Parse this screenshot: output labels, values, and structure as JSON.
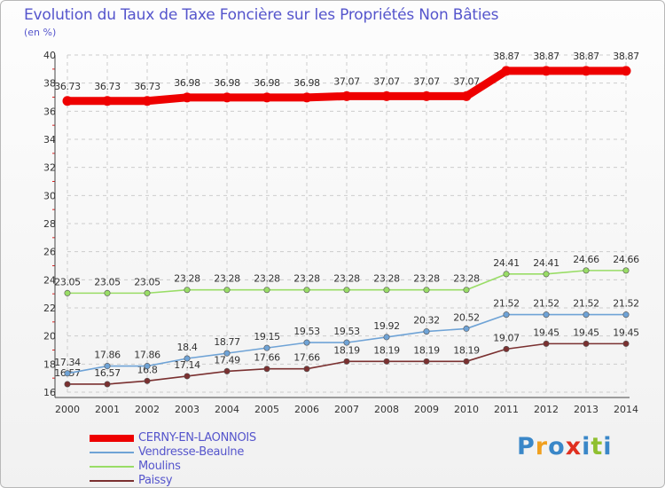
{
  "chart_data": {
    "type": "line",
    "title": "Evolution du Taux de Taxe Foncière sur les Propriétés Non Bâties",
    "ylabel": "(en %)",
    "xlabel": "",
    "ylim": [
      16,
      40
    ],
    "yticks": [
      16,
      18,
      20,
      22,
      24,
      26,
      28,
      30,
      32,
      34,
      36,
      38,
      40
    ],
    "categories": [
      "2000",
      "2001",
      "2002",
      "2003",
      "2004",
      "2005",
      "2006",
      "2007",
      "2008",
      "2009",
      "2010",
      "2011",
      "2012",
      "2013",
      "2014"
    ],
    "grid": true,
    "legend_position": "bottom-left",
    "series": [
      {
        "name": "CERNY-EN-LAONNOIS",
        "color": "#ee0000",
        "values": [
          36.73,
          36.73,
          36.73,
          36.98,
          36.98,
          36.98,
          36.98,
          37.07,
          37.07,
          37.07,
          37.07,
          38.87,
          38.87,
          38.87,
          38.87
        ],
        "labels": [
          "36.73",
          "36.73",
          "36.73",
          "36.98",
          "36.98",
          "36.98",
          "36.98",
          "37.07",
          "37.07",
          "37.07",
          "37.07",
          "38.87",
          "38.87",
          "38.87",
          "38.87"
        ]
      },
      {
        "name": "Vendresse-Beaulne",
        "color": "#6fa3d6",
        "values": [
          17.34,
          17.86,
          17.86,
          18.4,
          18.77,
          19.15,
          19.53,
          19.53,
          19.92,
          20.32,
          20.52,
          21.52,
          21.52,
          21.52,
          21.52
        ],
        "labels": [
          "17.34",
          "17.86",
          "17.86",
          "18.4",
          "18.77",
          "19.15",
          "19.53",
          "19.53",
          "19.92",
          "20.32",
          "20.52",
          "21.52",
          "21.52",
          "21.52",
          "21.52"
        ]
      },
      {
        "name": "Moulins",
        "color": "#99dd66",
        "values": [
          23.05,
          23.05,
          23.05,
          23.28,
          23.28,
          23.28,
          23.28,
          23.28,
          23.28,
          23.28,
          23.28,
          24.41,
          24.41,
          24.66,
          24.66
        ],
        "labels": [
          "23.05",
          "23.05",
          "23.05",
          "23.28",
          "23.28",
          "23.28",
          "23.28",
          "23.28",
          "23.28",
          "23.28",
          "23.28",
          "24.41",
          "24.41",
          "24.66",
          "24.66"
        ]
      },
      {
        "name": "Paissy",
        "color": "#7a3030",
        "values": [
          16.57,
          16.57,
          16.8,
          17.14,
          17.49,
          17.66,
          17.66,
          18.19,
          18.19,
          18.19,
          18.19,
          19.07,
          19.45,
          19.45,
          19.45
        ],
        "labels": [
          "16.57",
          "16.57",
          "16.8",
          "17.14",
          "17.49",
          "17.66",
          "17.66",
          "18.19",
          "18.19",
          "18.19",
          "18.19",
          "19.07",
          "19.45",
          "19.45",
          "19.45"
        ]
      }
    ]
  },
  "branding": {
    "logo_letters": [
      "P",
      "r",
      "o",
      "x",
      "i",
      "t",
      "i"
    ],
    "logo_colors": [
      "#3a87c8",
      "#f0a020",
      "#3a87c8",
      "#e03020",
      "#3a87c8",
      "#90c030",
      "#3a87c8"
    ]
  }
}
